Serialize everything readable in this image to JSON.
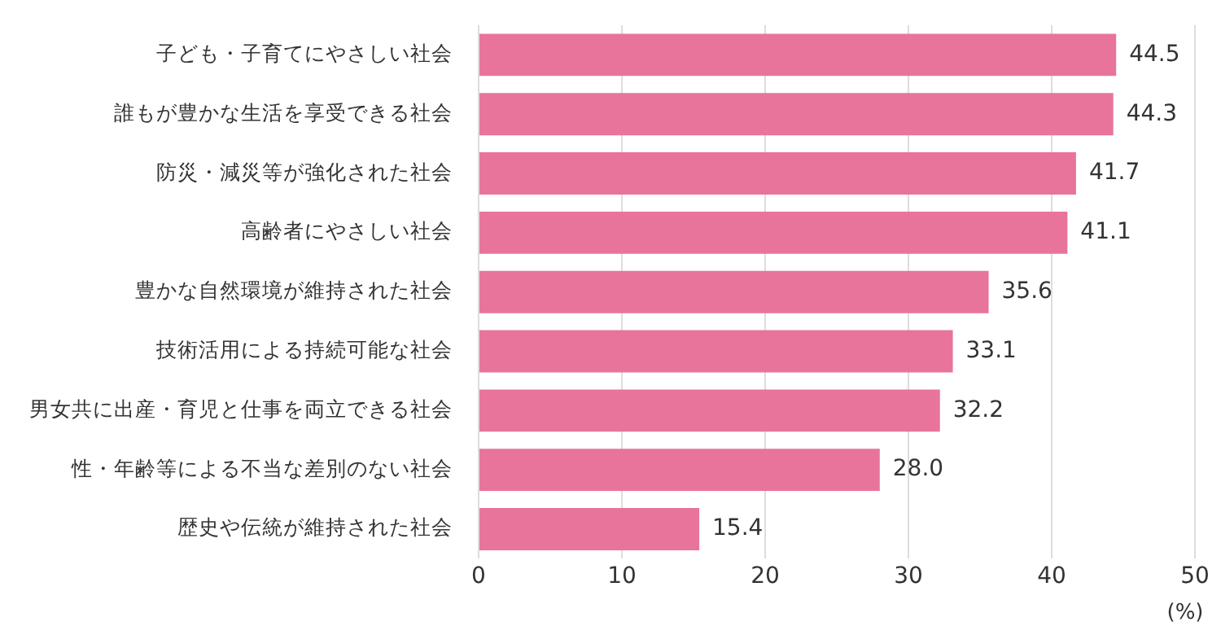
{
  "chart_data": {
    "type": "bar",
    "orientation": "horizontal",
    "xlabel": "(%)",
    "categories": [
      "子ども・子育てにやさしい社会",
      "誰もが豊かな生活を享受できる社会",
      "防災・減災等が強化された社会",
      "高齢者にやさしい社会",
      "豊かな自然環境が維持された社会",
      "技術活用による持続可能な社会",
      "男女共に出産・育児と仕事を両立できる社会",
      "性・年齢等による不当な差別のない社会",
      "歴史や伝統が維持された社会"
    ],
    "values": [
      44.5,
      44.3,
      41.7,
      41.1,
      35.6,
      33.1,
      32.2,
      28.0,
      15.4
    ],
    "value_labels": [
      "44.5",
      "44.3",
      "41.7",
      "41.1",
      "35.6",
      "33.1",
      "32.2",
      "28.0",
      "15.4"
    ],
    "color": "#e8749c",
    "xlim": [
      0,
      50
    ],
    "xticks": [
      0,
      10,
      20,
      30,
      40,
      50
    ],
    "grid": "x",
    "legend": false
  }
}
